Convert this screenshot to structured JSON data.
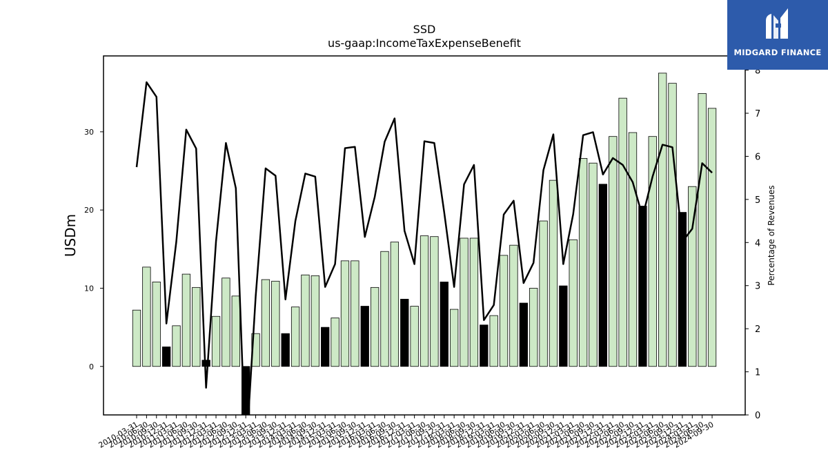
{
  "chart_data": {
    "type": "bar",
    "title": "SSD",
    "subtitle": "us-gaap:IncomeTaxExpenseBenefit",
    "ylabel": "USDm",
    "y2label": "Percentage of Revenues",
    "ylim": [
      -6.2,
      39.7
    ],
    "y2lim": [
      0,
      8.33
    ],
    "yticks": [
      0,
      10,
      20,
      30
    ],
    "y2ticks": [
      0,
      1,
      2,
      3,
      4,
      5,
      6,
      7,
      8
    ],
    "categories": [
      "2010-03-31",
      "2010-06-30",
      "2010-09-30",
      "2010-12-31",
      "2011-03-31",
      "2011-06-30",
      "2011-09-30",
      "2011-12-31",
      "2012-03-31",
      "2012-06-30",
      "2012-09-30",
      "2012-12-31",
      "2013-03-31",
      "2013-06-30",
      "2013-09-30",
      "2013-12-31",
      "2014-03-31",
      "2014-06-30",
      "2014-09-30",
      "2014-12-31",
      "2015-03-31",
      "2015-06-30",
      "2015-09-30",
      "2015-12-31",
      "2016-03-31",
      "2016-06-30",
      "2016-09-30",
      "2016-12-31",
      "2017-03-31",
      "2017-06-30",
      "2017-09-30",
      "2017-12-31",
      "2018-03-31",
      "2018-06-30",
      "2018-09-30",
      "2018-12-31",
      "2019-03-31",
      "2019-06-30",
      "2019-09-30",
      "2019-12-31",
      "2020-03-31",
      "2020-06-30",
      "2020-09-30",
      "2020-12-31",
      "2021-03-31",
      "2021-06-30",
      "2021-09-30",
      "2021-12-31",
      "2022-03-31",
      "2022-06-30",
      "2022-09-30",
      "2022-12-31",
      "2023-03-31",
      "2023-06-30",
      "2023-09-30",
      "2023-12-31",
      "2024-03-31",
      "2024-06-30",
      "2024-09-30"
    ],
    "series": [
      {
        "kind": "bar",
        "values": [
          7.2,
          12.7,
          10.8,
          2.5,
          5.2,
          11.8,
          10.1,
          0.8,
          6.4,
          11.3,
          9.0,
          -8.5,
          4.2,
          11.1,
          10.9,
          4.2,
          7.6,
          11.7,
          11.6,
          5.0,
          6.2,
          13.5,
          13.5,
          7.7,
          10.1,
          14.7,
          15.9,
          8.6,
          7.7,
          16.7,
          16.6,
          10.8,
          7.3,
          16.4,
          16.4,
          5.3,
          6.5,
          14.2,
          15.5,
          8.1,
          10.0,
          18.6,
          23.8,
          10.3,
          16.2,
          26.6,
          26.0,
          23.3,
          29.4,
          34.3,
          29.9,
          20.5,
          29.4,
          37.5,
          36.2,
          19.7,
          23.0,
          34.9,
          33.0
        ],
        "highlight": [
          false,
          false,
          false,
          true,
          false,
          false,
          false,
          true,
          false,
          false,
          false,
          true,
          false,
          false,
          false,
          true,
          false,
          false,
          false,
          true,
          false,
          false,
          false,
          true,
          false,
          false,
          false,
          true,
          false,
          false,
          false,
          true,
          false,
          false,
          false,
          true,
          false,
          false,
          false,
          true,
          false,
          false,
          false,
          true,
          false,
          false,
          false,
          true,
          false,
          false,
          false,
          true,
          false,
          false,
          false,
          true,
          false,
          false,
          false
        ]
      },
      {
        "kind": "line",
        "axis": "right",
        "values": [
          5.75,
          7.72,
          7.38,
          2.12,
          4.02,
          6.62,
          6.18,
          0.63,
          4.02,
          6.31,
          5.26,
          -1.0,
          2.75,
          5.72,
          5.55,
          2.68,
          4.5,
          5.6,
          5.53,
          2.97,
          3.5,
          6.19,
          6.22,
          4.13,
          5.06,
          6.34,
          6.88,
          4.27,
          3.5,
          6.35,
          6.31,
          4.7,
          2.97,
          5.35,
          5.8,
          2.2,
          2.55,
          4.65,
          4.97,
          3.06,
          3.53,
          5.68,
          6.51,
          3.5,
          4.66,
          6.49,
          6.56,
          5.58,
          5.96,
          5.8,
          5.4,
          4.6,
          5.53,
          6.27,
          6.21,
          4.02,
          4.32,
          5.84,
          5.62
        ]
      }
    ],
    "colors": {
      "bar": "#cde9c6",
      "bar_highlight": "#000000",
      "line": "#000000"
    },
    "legend": "none",
    "grid": false
  },
  "logo": {
    "text": "MIDGARD FINANCE",
    "background": "#2d5bab"
  }
}
